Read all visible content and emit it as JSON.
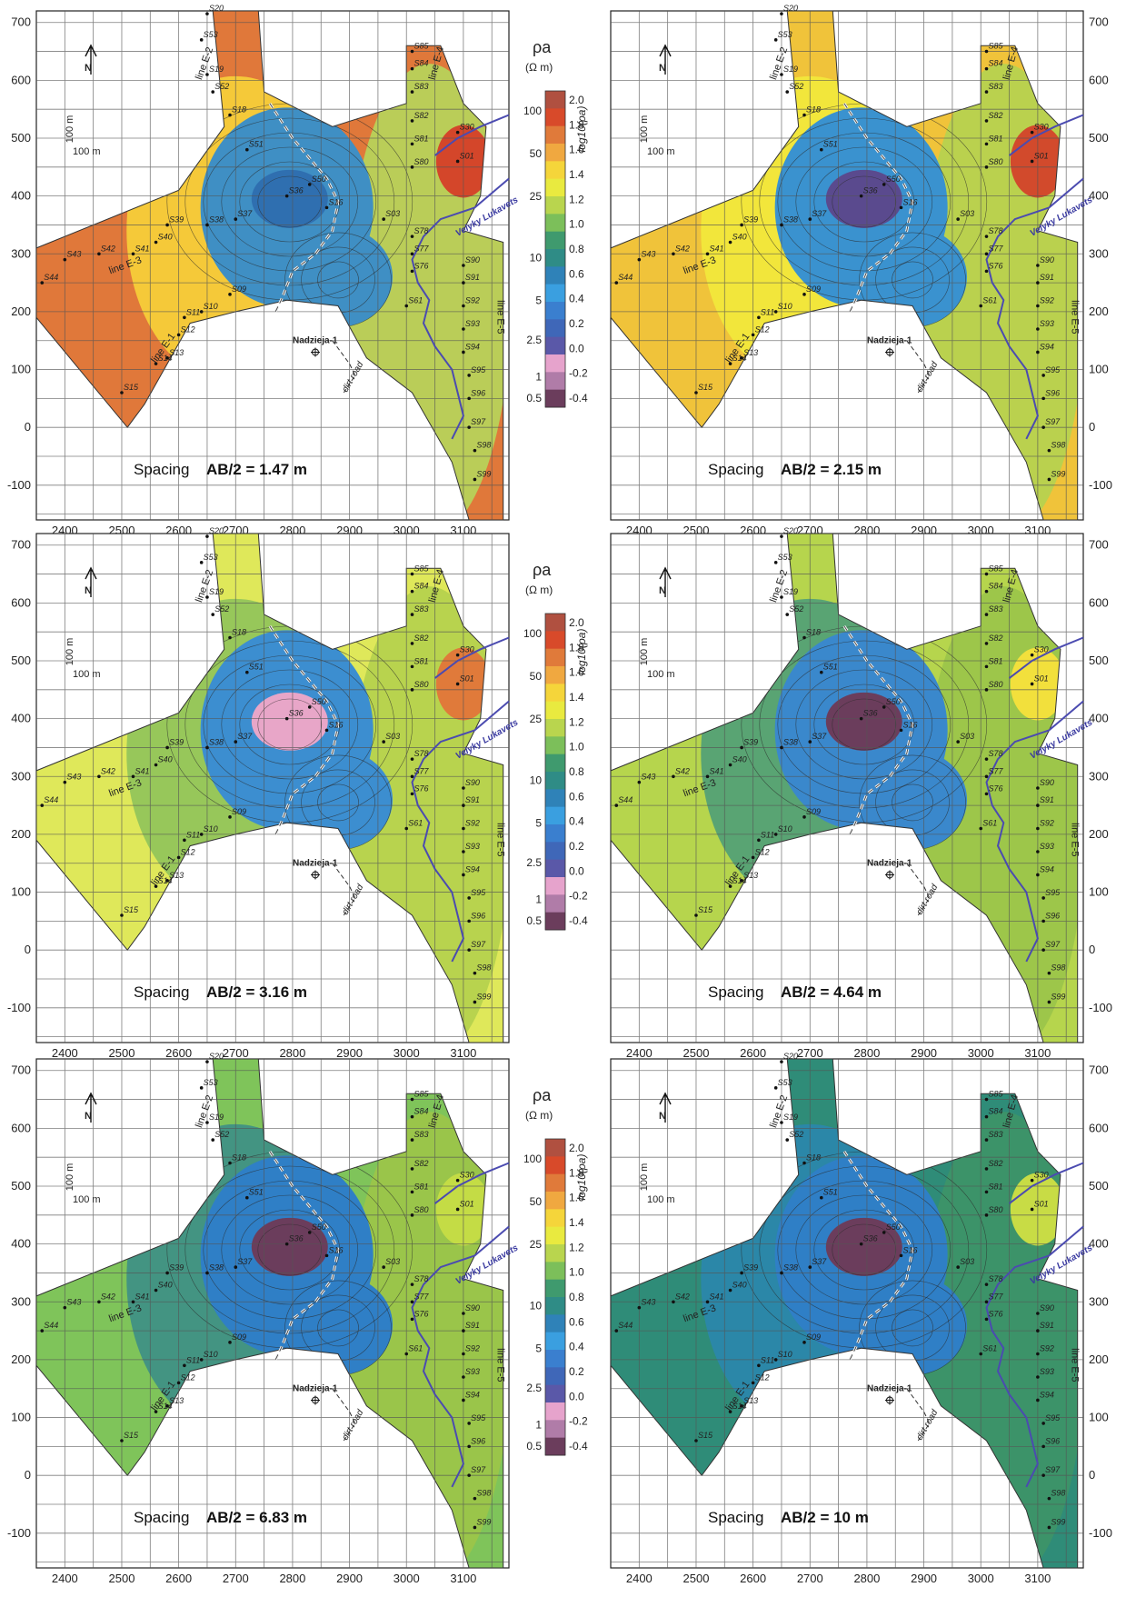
{
  "map": {
    "x_ticks": [
      "2400",
      "2500",
      "2600",
      "2700",
      "2800",
      "2900",
      "3000",
      "3100"
    ],
    "y_ticks": [
      "700",
      "600",
      "500",
      "400",
      "300",
      "200",
      "100",
      "0",
      "-100"
    ],
    "north_label": "N",
    "scale_vertical": "100 m",
    "scale_horizontal": "100 m",
    "well_label": "Nadzieja-1",
    "river_label": "Velyky Lukavets",
    "road_label": "dirt road",
    "spacing_label": "Spacing",
    "line_labels": [
      "line E-1",
      "line E-2",
      "line E-3",
      "line E-4",
      "line E-5"
    ],
    "station_labels": [
      "S20",
      "S53",
      "S19",
      "S52",
      "S18",
      "S51",
      "S85",
      "S84",
      "S83",
      "S82",
      "S81",
      "S80",
      "S30",
      "S01",
      "S39",
      "S40",
      "S41",
      "S42",
      "S43",
      "S44",
      "S38",
      "S37",
      "S36",
      "S50",
      "S16",
      "S09",
      "S10",
      "S11",
      "S12",
      "S13",
      "S14",
      "S15",
      "S03",
      "S78",
      "S77",
      "S76",
      "S61",
      "S90",
      "S91",
      "S92",
      "S93",
      "S94",
      "S95",
      "S96",
      "S97",
      "S98",
      "S99"
    ]
  },
  "panels": [
    {
      "spacing_value": "AB/2 = 1.47 m",
      "colors": {
        "base": "#e0783a",
        "mid": "#f7d23a",
        "low": "#3f8fc4",
        "center": "#2f6fb0",
        "east": "#b7d25a",
        "hot": "#d4462a"
      }
    },
    {
      "spacing_value": "AB/2 = 2.15 m",
      "colors": {
        "base": "#f0c33a",
        "mid": "#f2ea3c",
        "low": "#3a92cf",
        "center": "#5a4a8e",
        "east": "#b6d24f",
        "hot": "#d24a2c"
      }
    },
    {
      "spacing_value": "AB/2 = 3.16 m",
      "colors": {
        "base": "#dfe85a",
        "mid": "#8fc35a",
        "low": "#3c8ed0",
        "center": "#e8a6c8",
        "east": "#b5d24e",
        "hot": "#e07a3a"
      }
    },
    {
      "spacing_value": "AB/2 = 4.64 m",
      "colors": {
        "base": "#b6d54d",
        "mid": "#4f9f78",
        "low": "#3a88cc",
        "center": "#6b3d5c",
        "east": "#9cc54a",
        "hot": "#f2e03c"
      }
    },
    {
      "spacing_value": "AB/2 = 6.83 m",
      "colors": {
        "base": "#7fc45a",
        "mid": "#3d8f86",
        "low": "#2f7fc6",
        "center": "#6b3d5c",
        "east": "#9cc54a",
        "hot": "#c4dc45"
      }
    },
    {
      "spacing_value": "AB/2 = 10 m",
      "colors": {
        "base": "#2f8c78",
        "mid": "#2b86ad",
        "low": "#2f7fc6",
        "center": "#6b3d5c",
        "east": "#3d9468",
        "hot": "#c8dc45"
      }
    }
  ],
  "legend": {
    "title": "ρa",
    "unit": "(Ω m)",
    "log_label": "log10(ρa)",
    "rho_values": [
      "100",
      "50",
      "25",
      "10",
      "5",
      "2.5",
      "1",
      "0.5"
    ],
    "log_values": [
      "2.0",
      "1.8",
      "1.6",
      "1.4",
      "1.2",
      "1.0",
      "0.8",
      "0.6",
      "0.4",
      "0.2",
      "0.0",
      "-0.2",
      "-0.4"
    ],
    "colors": [
      "#b05040",
      "#d84a2a",
      "#e07a3a",
      "#f0a840",
      "#f5d53a",
      "#e9ea3f",
      "#b9d54e",
      "#7cbf5a",
      "#3f9a6e",
      "#2f8c86",
      "#2f82b8",
      "#3a9fe0",
      "#3a7fcf",
      "#3f67b8",
      "#5a58a8",
      "#e6a3cc",
      "#b07ca8",
      "#6b3d5c"
    ]
  }
}
